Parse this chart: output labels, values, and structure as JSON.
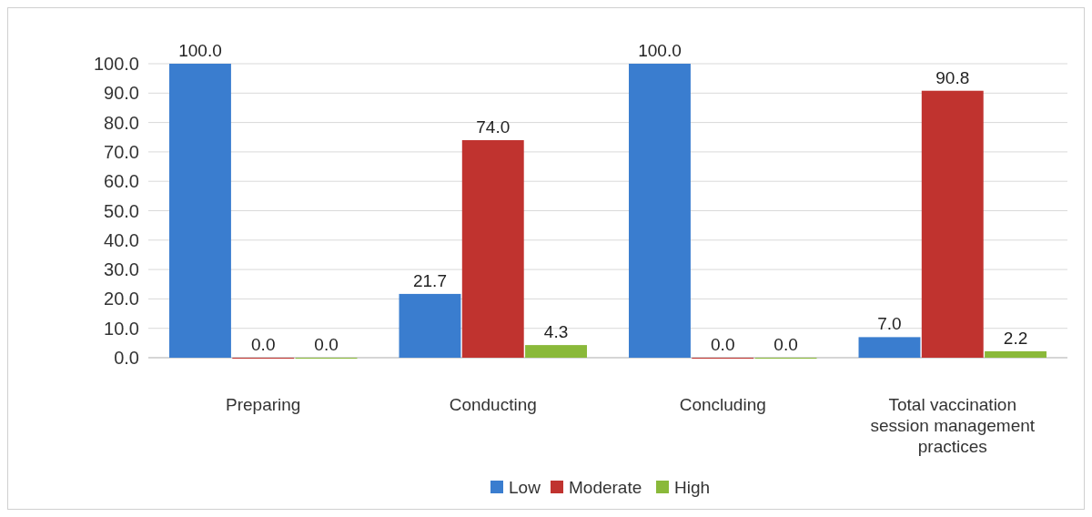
{
  "chart_data": {
    "type": "bar",
    "categories": [
      "Preparing",
      "Conducting",
      "Concluding",
      "Total vaccination session management practices"
    ],
    "series": [
      {
        "name": "Low",
        "color": "#3a7dcf",
        "values": [
          100.0,
          21.7,
          100.0,
          7.0
        ],
        "value_labels": [
          "100.0",
          "21.7",
          "100.0",
          "7.0"
        ]
      },
      {
        "name": "Moderate",
        "color": "#c0332f",
        "values": [
          0.0,
          74.0,
          0.0,
          90.8
        ],
        "value_labels": [
          "0.0",
          "74.0",
          "0.0",
          "90.8"
        ]
      },
      {
        "name": "High",
        "color": "#8ab93a",
        "values": [
          0.0,
          4.3,
          0.0,
          2.2
        ],
        "value_labels": [
          "0.0",
          "4.3",
          "0.0",
          "2.2"
        ]
      }
    ],
    "ylim": [
      0,
      100
    ],
    "yticks": [
      {
        "value": 0,
        "label": "0.0"
      },
      {
        "value": 10,
        "label": "10.0"
      },
      {
        "value": 20,
        "label": "20.0"
      },
      {
        "value": 30,
        "label": "30.0"
      },
      {
        "value": 40,
        "label": "40.0"
      },
      {
        "value": 50,
        "label": "50.0"
      },
      {
        "value": 60,
        "label": "60.0"
      },
      {
        "value": 70,
        "label": "70.0"
      },
      {
        "value": 80,
        "label": "80.0"
      },
      {
        "value": 90,
        "label": "90.0"
      },
      {
        "value": 100,
        "label": "100.0"
      }
    ],
    "grid": "y",
    "legend": "bottom"
  }
}
